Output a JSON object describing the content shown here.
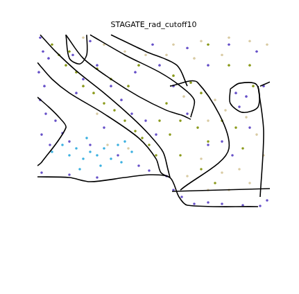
{
  "chart_data": {
    "type": "scatter",
    "title": "STAGATE_rad_cutoff10",
    "xlim": [
      54,
      389
    ],
    "ylim": [
      120,
      376
    ],
    "tick_labels": false,
    "grid": false,
    "series": [
      {
        "type": "scatter",
        "color": "#6650c8",
        "values": [
          [
            58,
            370
          ],
          [
            62,
            350
          ],
          [
            70,
            340
          ],
          [
            56,
            320
          ],
          [
            64,
            300
          ],
          [
            58,
            280
          ],
          [
            66,
            260
          ],
          [
            80,
            250
          ],
          [
            60,
            230
          ],
          [
            72,
            215
          ],
          [
            90,
            232
          ],
          [
            100,
            220
          ],
          [
            110,
            290
          ],
          [
            120,
            310
          ],
          [
            105,
            345
          ],
          [
            130,
            365
          ],
          [
            140,
            330
          ],
          [
            160,
            300
          ],
          [
            175,
            280
          ],
          [
            190,
            260
          ],
          [
            210,
            250
          ],
          [
            225,
            230
          ],
          [
            240,
            170
          ],
          [
            250,
            150
          ],
          [
            262,
            140
          ],
          [
            280,
            130
          ],
          [
            300,
            132
          ],
          [
            320,
            130
          ],
          [
            350,
            128
          ],
          [
            375,
            127
          ],
          [
            385,
            135
          ],
          [
            345,
            270
          ],
          [
            355,
            285
          ],
          [
            340,
            290
          ],
          [
            230,
            330
          ],
          [
            250,
            300
          ],
          [
            270,
            260
          ],
          [
            300,
            215
          ],
          [
            320,
            220
          ],
          [
            335,
            200
          ],
          [
            360,
            240
          ],
          [
            380,
            300
          ],
          [
            300,
            330
          ],
          [
            270,
            355
          ],
          [
            220,
            360
          ],
          [
            330,
            360
          ],
          [
            370,
            350
          ],
          [
            195,
            320
          ],
          [
            150,
            240
          ],
          [
            130,
            215
          ],
          [
            170,
            200
          ],
          [
            60,
            175
          ],
          [
            100,
            172
          ],
          [
            140,
            168
          ],
          [
            200,
            185
          ],
          [
            215,
            178
          ]
        ]
      },
      {
        "type": "scatter",
        "color": "#8a9a1a",
        "values": [
          [
            75,
            360
          ],
          [
            85,
            345
          ],
          [
            95,
            330
          ],
          [
            110,
            320
          ],
          [
            120,
            300
          ],
          [
            135,
            290
          ],
          [
            150,
            275
          ],
          [
            165,
            265
          ],
          [
            180,
            250
          ],
          [
            195,
            235
          ],
          [
            205,
            225
          ],
          [
            215,
            215
          ],
          [
            225,
            200
          ],
          [
            100,
            350
          ],
          [
            140,
            325
          ],
          [
            160,
            310
          ],
          [
            185,
            300
          ],
          [
            200,
            330
          ],
          [
            250,
            315
          ],
          [
            275,
            305
          ],
          [
            290,
            290
          ],
          [
            240,
            275
          ],
          [
            260,
            250
          ],
          [
            285,
            240
          ],
          [
            300,
            220
          ],
          [
            320,
            250
          ],
          [
            330,
            330
          ],
          [
            300,
            360
          ],
          [
            360,
            330
          ],
          [
            365,
            300
          ],
          [
            340,
            240
          ],
          [
            350,
            210
          ],
          [
            290,
            180
          ],
          [
            310,
            160
          ],
          [
            260,
            200
          ],
          [
            230,
            250
          ],
          [
            245,
            230
          ]
        ]
      },
      {
        "type": "scatter",
        "color": "#d9cba3",
        "values": [
          [
            120,
            370
          ],
          [
            150,
            360
          ],
          [
            180,
            350
          ],
          [
            210,
            345
          ],
          [
            250,
            360
          ],
          [
            290,
            365
          ],
          [
            330,
            370
          ],
          [
            360,
            365
          ],
          [
            385,
            360
          ],
          [
            280,
            340
          ],
          [
            320,
            345
          ],
          [
            240,
            345
          ],
          [
            265,
            285
          ],
          [
            310,
            280
          ],
          [
            325,
            265
          ],
          [
            355,
            255
          ],
          [
            370,
            230
          ],
          [
            380,
            200
          ],
          [
            345,
            180
          ],
          [
            320,
            175
          ],
          [
            290,
            195
          ],
          [
            270,
            170
          ],
          [
            300,
            150
          ],
          [
            330,
            150
          ],
          [
            360,
            160
          ],
          [
            300,
            250
          ],
          [
            155,
            215
          ],
          [
            185,
            210
          ],
          [
            140,
            260
          ]
        ]
      },
      {
        "type": "scatter",
        "color": "#3ab0e0",
        "values": [
          [
            90,
            215
          ],
          [
            100,
            200
          ],
          [
            110,
            210
          ],
          [
            120,
            195
          ],
          [
            130,
            205
          ],
          [
            140,
            200
          ],
          [
            150,
            210
          ],
          [
            160,
            195
          ],
          [
            170,
            215
          ],
          [
            180,
            220
          ],
          [
            75,
            205
          ],
          [
            115,
            180
          ],
          [
            145,
            185
          ],
          [
            175,
            190
          ],
          [
            190,
            205
          ],
          [
            125,
            225
          ]
        ]
      },
      {
        "type": "line",
        "color": "#000000",
        "values": [
          [
            58,
            374
          ],
          [
            80,
            350
          ],
          [
            110,
            322
          ],
          [
            150,
            290
          ],
          [
            190,
            255
          ],
          [
            215,
            230
          ],
          [
            235,
            205
          ],
          [
            242,
            180
          ],
          [
            245,
            168
          ]
        ]
      },
      {
        "type": "line",
        "color": "#000000",
        "values": [
          [
            54,
            334
          ],
          [
            75,
            310
          ],
          [
            100,
            290
          ],
          [
            150,
            260
          ],
          [
            200,
            225
          ],
          [
            225,
            195
          ],
          [
            232,
            175
          ],
          [
            245,
            168
          ]
        ]
      },
      {
        "type": "line",
        "color": "#000000",
        "values": [
          [
            54,
            169
          ],
          [
            100,
            168
          ],
          [
            130,
            162
          ],
          [
            180,
            168
          ],
          [
            215,
            172
          ],
          [
            245,
            168
          ],
          [
            258,
            140
          ],
          [
            270,
            128
          ],
          [
            372,
            126
          ]
        ]
      },
      {
        "type": "line",
        "color": "#000000",
        "values": [
          [
            248,
            148
          ],
          [
            389,
            152
          ]
        ]
      },
      {
        "type": "line",
        "color": "#000000",
        "values": [
          [
            95,
            374
          ],
          [
            120,
            340
          ],
          [
            160,
            310
          ],
          [
            200,
            285
          ],
          [
            240,
            265
          ],
          [
            262,
            258
          ],
          [
            275,
            252
          ]
        ]
      },
      {
        "type": "line",
        "color": "#000000",
        "values": [
          [
            130,
            374
          ],
          [
            180,
            345
          ],
          [
            230,
            320
          ],
          [
            260,
            300
          ],
          [
            280,
            280
          ],
          [
            275,
            255
          ]
        ]
      },
      {
        "type": "line",
        "color": "#000000",
        "values": [
          [
            160,
            374
          ],
          [
            210,
            350
          ],
          [
            255,
            330
          ],
          [
            270,
            300
          ]
        ]
      },
      {
        "type": "line",
        "color": "#000000",
        "values": [
          [
            245,
            300
          ],
          [
            285,
            305
          ],
          [
            330,
            210
          ],
          [
            260,
            150
          ]
        ]
      },
      {
        "type": "line",
        "color": "#000000",
        "values": [
          [
            332,
            296
          ],
          [
            345,
            304
          ],
          [
            370,
            302
          ],
          [
            372,
            270
          ],
          [
            350,
            262
          ],
          [
            332,
            275
          ],
          [
            332,
            296
          ]
        ]
      },
      {
        "type": "line",
        "color": "#000000",
        "values": [
          [
            372,
            300
          ],
          [
            380,
            235
          ],
          [
            375,
            140
          ]
        ]
      },
      {
        "type": "line",
        "color": "#000000",
        "values": [
          [
            375,
            300
          ],
          [
            389,
            306
          ]
        ]
      },
      {
        "type": "line",
        "color": "#000000",
        "values": [
          [
            54,
            284
          ],
          [
            70,
            270
          ],
          [
            85,
            255
          ],
          [
            95,
            240
          ],
          [
            60,
            190
          ],
          [
            54,
            185
          ]
        ]
      },
      {
        "type": "line",
        "color": "#000000",
        "values": [
          [
            95,
            374
          ],
          [
            100,
            340
          ],
          [
            115,
            332
          ],
          [
            125,
            345
          ],
          [
            125,
            374
          ]
        ]
      }
    ]
  }
}
